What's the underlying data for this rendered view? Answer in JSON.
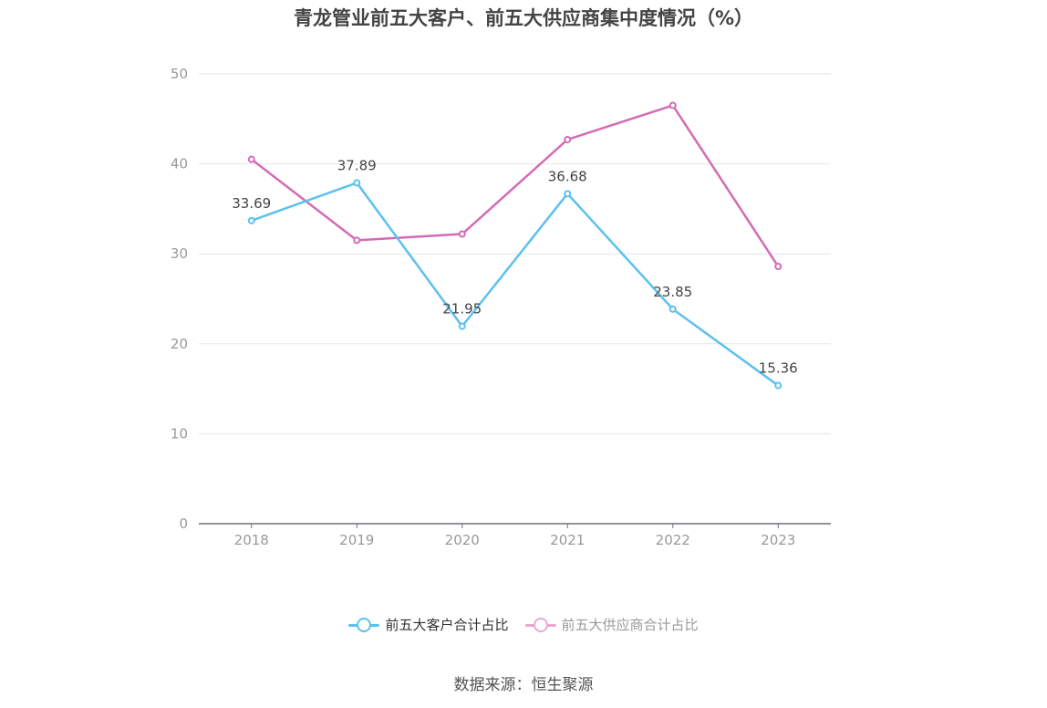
{
  "chart_data": {
    "type": "line",
    "title": "青龙管业前五大客户、前五大供应商集中度情况（%）",
    "categories": [
      "2018",
      "2019",
      "2020",
      "2021",
      "2022",
      "2023"
    ],
    "ylim": [
      0,
      50
    ],
    "yticks": [
      0,
      10,
      20,
      30,
      40,
      50
    ],
    "grid": true,
    "legend_position": "bottom",
    "series": [
      {
        "name": "前五大客户合计占比",
        "values": [
          33.69,
          37.89,
          21.95,
          36.68,
          23.85,
          15.36
        ],
        "labels": [
          "33.69",
          "37.89",
          "21.95",
          "36.68",
          "23.85",
          "15.36"
        ],
        "color": "#5bc1ef"
      },
      {
        "name": "前五大供应商合计占比",
        "values": [
          40.5,
          31.5,
          32.2,
          42.7,
          46.5,
          28.6
        ],
        "color": "#d46bb5"
      }
    ]
  },
  "legend_inactive_color": "#e8a8d4",
  "source": "数据来源：恒生聚源"
}
